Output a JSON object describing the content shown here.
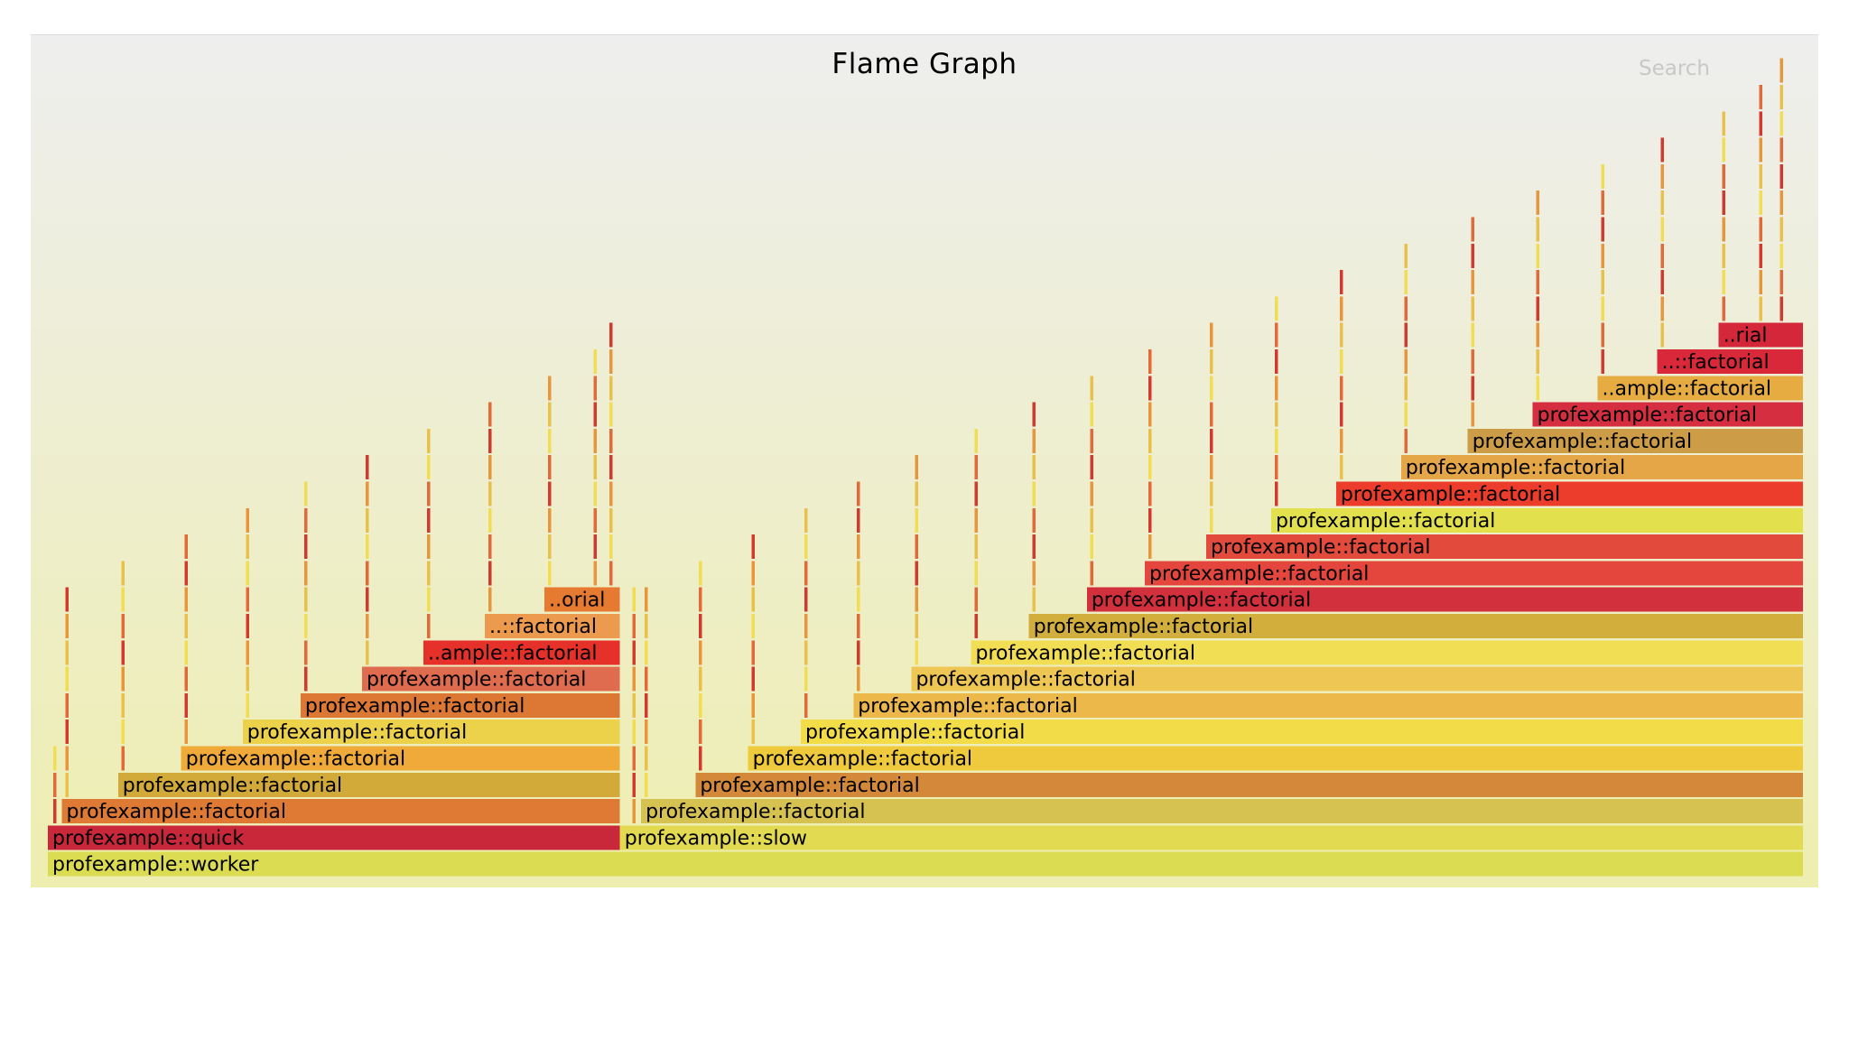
{
  "title": "Flame Graph",
  "search_label": "Search",
  "chart_data": {
    "type": "flame",
    "xlim": [
      0,
      1000
    ],
    "frames": [
      {
        "name": "profexample::worker",
        "x": 0,
        "w": 1000,
        "depth": 0,
        "color": "#dcdc52",
        "label": "profexample::worker"
      },
      {
        "name": "profexample::quick",
        "x": 0,
        "w": 326,
        "depth": 1,
        "color": "#c8283a",
        "label": "profexample::quick"
      },
      {
        "name": "profexample::slow",
        "x": 326,
        "w": 674,
        "depth": 1,
        "color": "#e2da50",
        "label": "profexample::slow"
      },
      {
        "name": "profexample::factorial",
        "x": 8,
        "w": 318,
        "depth": 2,
        "color": "#de7a34",
        "label": "profexample::factorial"
      },
      {
        "name": "profexample::factorial",
        "x": 40,
        "w": 286,
        "depth": 3,
        "color": "#d2aa3a",
        "label": "profexample::factorial"
      },
      {
        "name": "profexample::factorial",
        "x": 76,
        "w": 250,
        "depth": 4,
        "color": "#f0aa3a",
        "label": "profexample::factorial"
      },
      {
        "name": "profexample::factorial",
        "x": 111,
        "w": 215,
        "depth": 5,
        "color": "#ecd24a",
        "label": "profexample::factorial"
      },
      {
        "name": "profexample::factorial",
        "x": 144,
        "w": 182,
        "depth": 6,
        "color": "#dc7834",
        "label": "profexample::factorial"
      },
      {
        "name": "profexample::factorial",
        "x": 179,
        "w": 147,
        "depth": 7,
        "color": "#df6c4e",
        "label": "profexample::factorial"
      },
      {
        "name": "..ample::factorial",
        "x": 214,
        "w": 112,
        "depth": 8,
        "color": "#e6302a",
        "label": "..ample::factorial"
      },
      {
        "name": "..::factorial",
        "x": 249,
        "w": 77,
        "depth": 9,
        "color": "#ec9a4e",
        "label": "..::factorial"
      },
      {
        "name": "..orial",
        "x": 283,
        "w": 43,
        "depth": 10,
        "color": "#e67a30",
        "label": "..orial"
      },
      {
        "name": "profexample::factorial",
        "x": 338,
        "w": 662,
        "depth": 2,
        "color": "#d6c250",
        "label": "profexample::factorial"
      },
      {
        "name": "profexample::factorial",
        "x": 369,
        "w": 631,
        "depth": 3,
        "color": "#d4893a",
        "label": "profexample::factorial"
      },
      {
        "name": "profexample::factorial",
        "x": 399,
        "w": 601,
        "depth": 4,
        "color": "#efca3c",
        "label": "profexample::factorial"
      },
      {
        "name": "profexample::factorial",
        "x": 429,
        "w": 571,
        "depth": 5,
        "color": "#f2dc48",
        "label": "profexample::factorial"
      },
      {
        "name": "profexample::factorial",
        "x": 459,
        "w": 541,
        "depth": 6,
        "color": "#ecb84a",
        "label": "profexample::factorial"
      },
      {
        "name": "profexample::factorial",
        "x": 492,
        "w": 508,
        "depth": 7,
        "color": "#eec654",
        "label": "profexample::factorial"
      },
      {
        "name": "profexample::factorial",
        "x": 526,
        "w": 474,
        "depth": 8,
        "color": "#f2de54",
        "label": "profexample::factorial"
      },
      {
        "name": "profexample::factorial",
        "x": 559,
        "w": 441,
        "depth": 9,
        "color": "#d2ae3c",
        "label": "profexample::factorial"
      },
      {
        "name": "profexample::factorial",
        "x": 592,
        "w": 408,
        "depth": 10,
        "color": "#d2303c",
        "label": "profexample::factorial"
      },
      {
        "name": "profexample::factorial",
        "x": 625,
        "w": 375,
        "depth": 11,
        "color": "#e4463e",
        "label": "profexample::factorial"
      },
      {
        "name": "profexample::factorial",
        "x": 660,
        "w": 340,
        "depth": 12,
        "color": "#e24a3c",
        "label": "profexample::factorial"
      },
      {
        "name": "profexample::factorial",
        "x": 697,
        "w": 303,
        "depth": 13,
        "color": "#e2e04c",
        "label": "profexample::factorial"
      },
      {
        "name": "profexample::factorial",
        "x": 734,
        "w": 266,
        "depth": 14,
        "color": "#ec3c2c",
        "label": "profexample::factorial"
      },
      {
        "name": "profexample::factorial",
        "x": 771,
        "w": 229,
        "depth": 15,
        "color": "#e4a646",
        "label": "profexample::factorial"
      },
      {
        "name": "profexample::factorial",
        "x": 809,
        "w": 191,
        "depth": 16,
        "color": "#cc9c46",
        "label": "profexample::factorial"
      },
      {
        "name": "profexample::factorial",
        "x": 846,
        "w": 154,
        "depth": 17,
        "color": "#d52e40",
        "label": "profexample::factorial"
      },
      {
        "name": "..ample::factorial",
        "x": 883,
        "w": 117,
        "depth": 18,
        "color": "#e6ac42",
        "label": "..ample::factorial"
      },
      {
        "name": "..::factorial",
        "x": 917,
        "w": 83,
        "depth": 19,
        "color": "#d8283a",
        "label": "..::factorial"
      },
      {
        "name": "..rial",
        "x": 952,
        "w": 48,
        "depth": 20,
        "color": "#d4283a",
        "label": "..rial"
      }
    ],
    "stacks": [
      {
        "x": 3,
        "from": 1,
        "to": 4
      },
      {
        "x": 10,
        "from": 3,
        "to": 10
      },
      {
        "x": 42,
        "from": 4,
        "to": 11
      },
      {
        "x": 78,
        "from": 5,
        "to": 12
      },
      {
        "x": 113,
        "from": 6,
        "to": 13
      },
      {
        "x": 146,
        "from": 7,
        "to": 14
      },
      {
        "x": 181,
        "from": 8,
        "to": 15
      },
      {
        "x": 216,
        "from": 9,
        "to": 16
      },
      {
        "x": 251,
        "from": 10,
        "to": 17
      },
      {
        "x": 285,
        "from": 11,
        "to": 18
      },
      {
        "x": 311,
        "from": 11,
        "to": 19
      },
      {
        "x": 320,
        "from": 10,
        "to": 20
      },
      {
        "x": 333,
        "from": 2,
        "to": 10
      },
      {
        "x": 340,
        "from": 3,
        "to": 10
      },
      {
        "x": 371,
        "from": 4,
        "to": 11
      },
      {
        "x": 401,
        "from": 5,
        "to": 12
      },
      {
        "x": 431,
        "from": 6,
        "to": 13
      },
      {
        "x": 461,
        "from": 7,
        "to": 14
      },
      {
        "x": 494,
        "from": 8,
        "to": 15
      },
      {
        "x": 528,
        "from": 9,
        "to": 16
      },
      {
        "x": 561,
        "from": 10,
        "to": 17
      },
      {
        "x": 594,
        "from": 11,
        "to": 18
      },
      {
        "x": 627,
        "from": 12,
        "to": 19
      },
      {
        "x": 662,
        "from": 13,
        "to": 20
      },
      {
        "x": 699,
        "from": 14,
        "to": 21
      },
      {
        "x": 736,
        "from": 15,
        "to": 22
      },
      {
        "x": 773,
        "from": 16,
        "to": 23
      },
      {
        "x": 811,
        "from": 17,
        "to": 24
      },
      {
        "x": 848,
        "from": 18,
        "to": 25
      },
      {
        "x": 885,
        "from": 19,
        "to": 26
      },
      {
        "x": 919,
        "from": 20,
        "to": 27
      },
      {
        "x": 954,
        "from": 21,
        "to": 28
      },
      {
        "x": 975,
        "from": 21,
        "to": 29
      },
      {
        "x": 987,
        "from": 21,
        "to": 30
      }
    ]
  },
  "colors": {
    "stack_palette": [
      "#e8c04a",
      "#d23a2e",
      "#f2dc52",
      "#e8963c",
      "#e26a38"
    ]
  }
}
